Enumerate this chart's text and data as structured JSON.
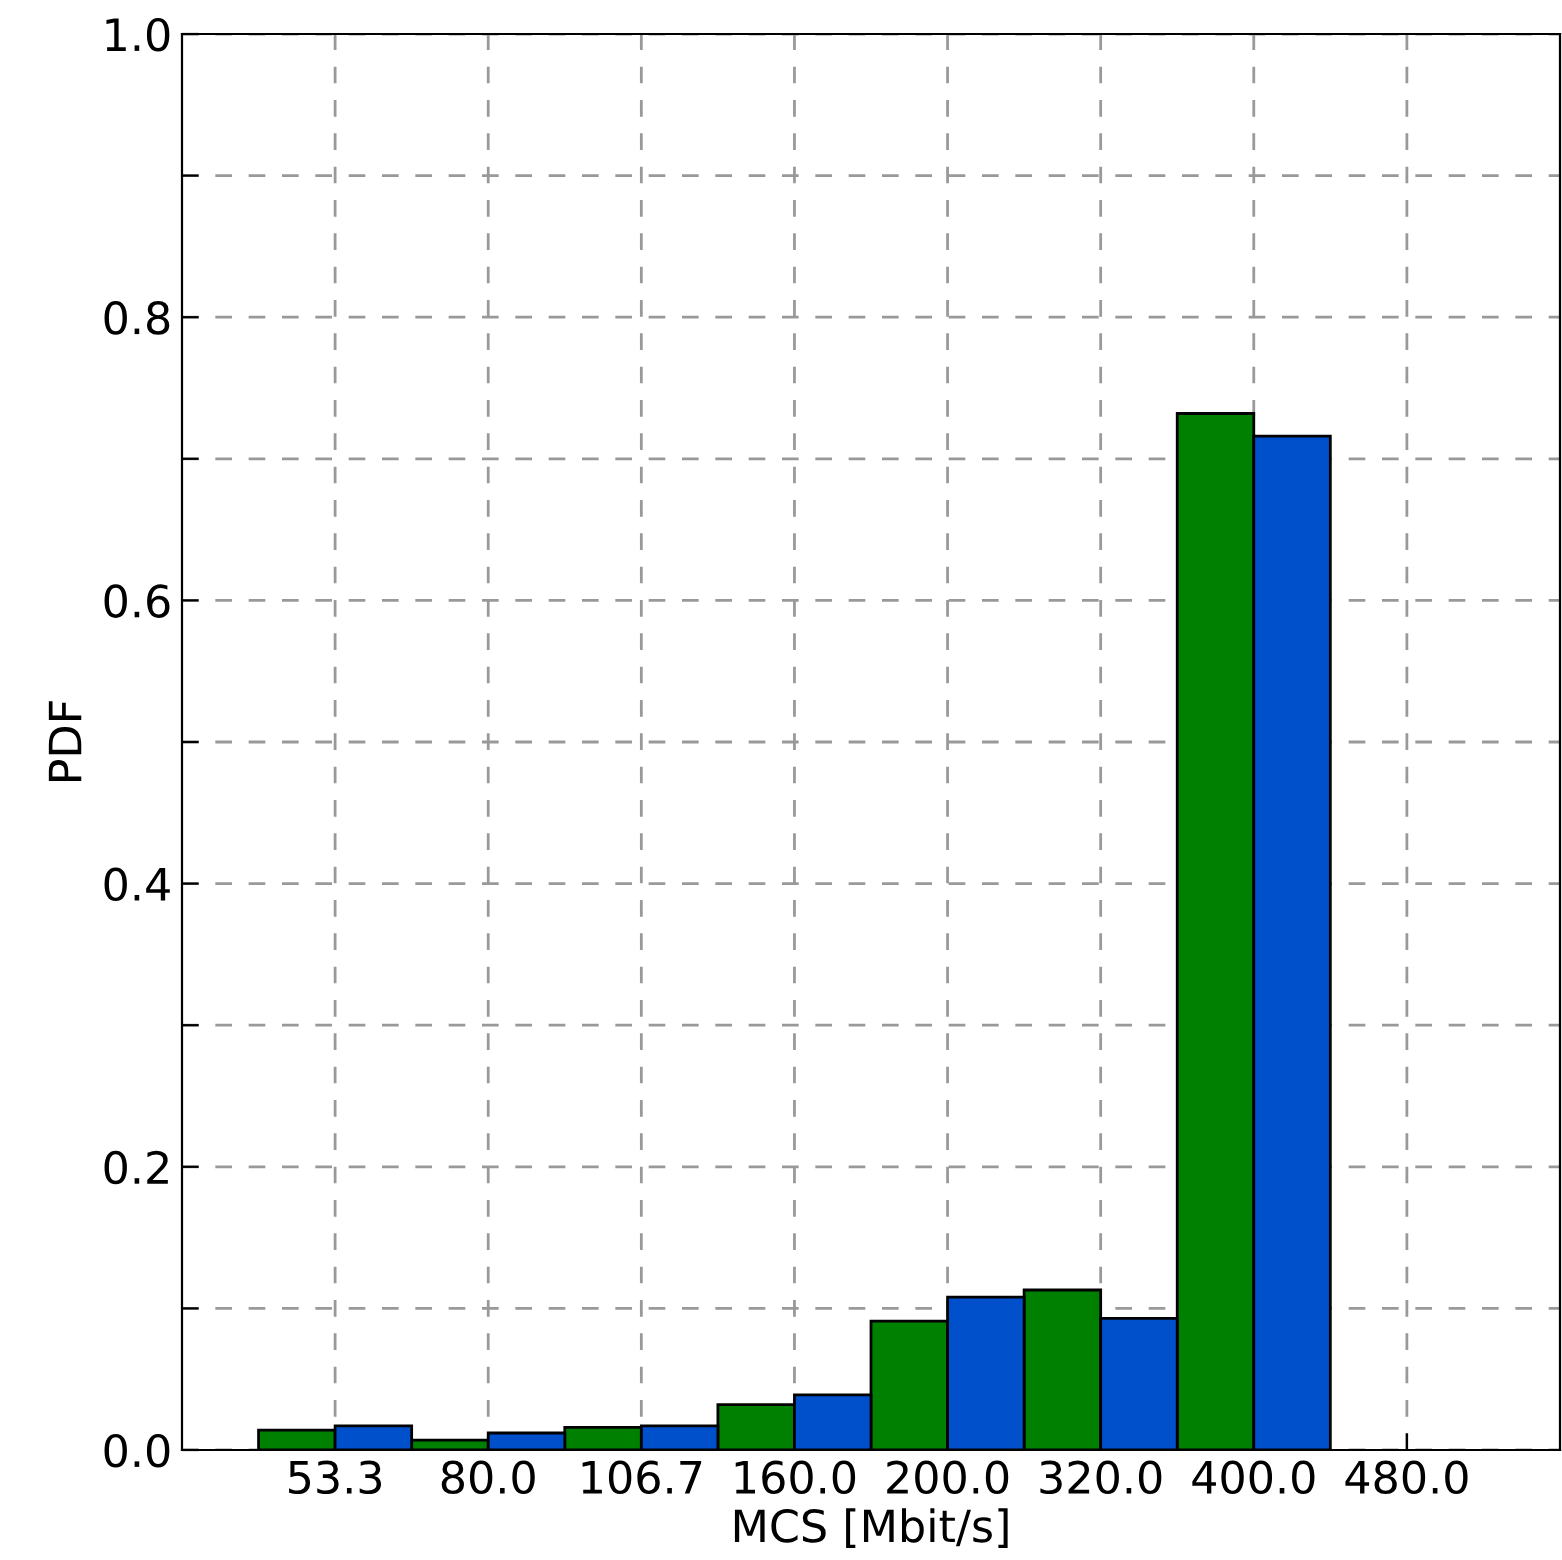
{
  "chart_data": {
    "type": "bar",
    "xlabel": "MCS [Mbit/s]",
    "ylabel": "PDF",
    "categories": [
      "53.3",
      "80.0",
      "106.7",
      "160.0",
      "200.0",
      "320.0",
      "400.0",
      "480.0"
    ],
    "series": [
      {
        "color": "#008000",
        "values": [
          0.014,
          0.007,
          0.016,
          0.032,
          0.091,
          0.113,
          0.732,
          null
        ]
      },
      {
        "color": "#0050cc",
        "values": [
          0.017,
          0.012,
          0.017,
          0.039,
          0.108,
          0.093,
          0.716,
          null
        ]
      }
    ],
    "ylim": [
      0,
      1
    ],
    "yticks": [
      {
        "value": 0,
        "label": "0.0"
      },
      {
        "value": 0.1,
        "label": null
      },
      0.2,
      {
        "value": 0.3,
        "label": null
      },
      0.4,
      {
        "value": 0.5,
        "label": null
      },
      0.6,
      {
        "value": 0.7,
        "label": null
      },
      0.8,
      {
        "value": 0.9,
        "label": null
      },
      {
        "value": 1,
        "label": "1.0"
      }
    ],
    "grid": true
  }
}
